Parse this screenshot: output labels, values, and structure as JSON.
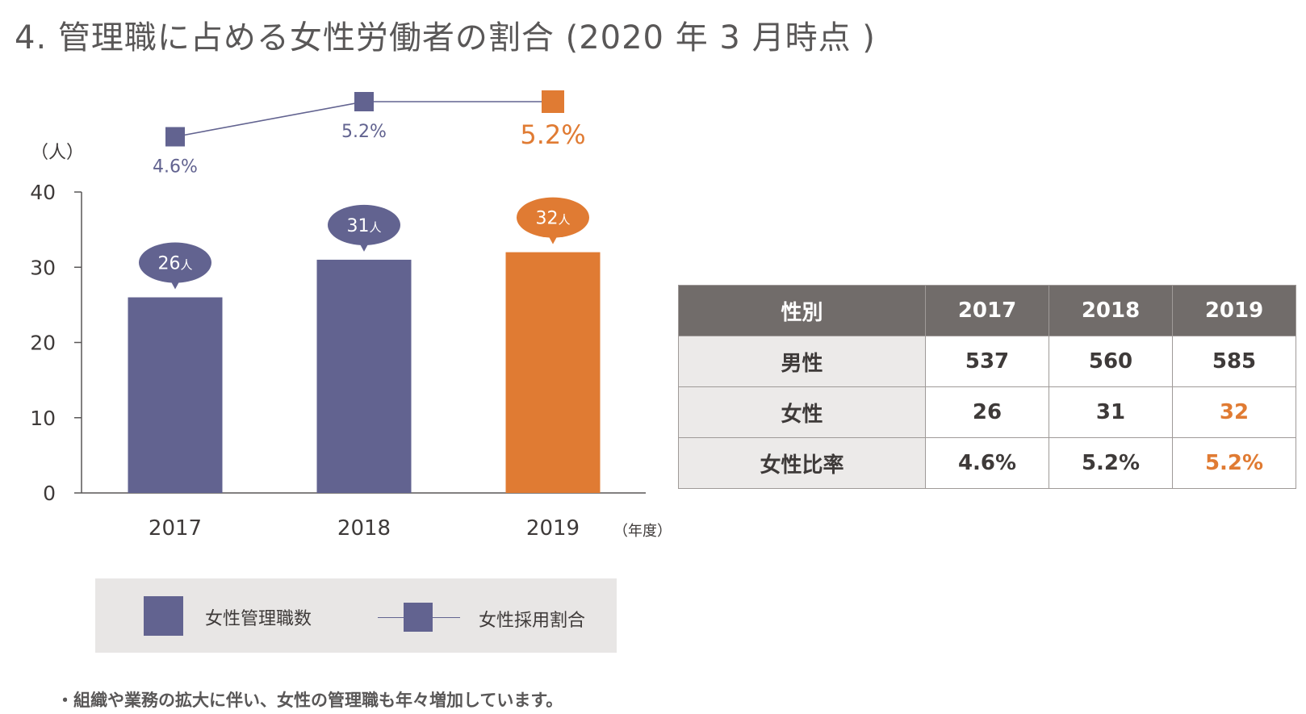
{
  "title": "4. 管理職に占める女性労働者の割合 (2020 年 3 月時点 )",
  "colors": {
    "bar": "#626390",
    "highlight": "#e07b33",
    "axis": "#595757"
  },
  "chart_data": {
    "type": "bar",
    "categories": [
      "2017",
      "2018",
      "2019"
    ],
    "values": [
      26,
      31,
      32
    ],
    "value_labels": [
      "26人",
      "31人",
      "32人"
    ],
    "ylim": [
      0,
      40
    ],
    "yticks": [
      "0",
      "10",
      "20",
      "30",
      "40"
    ],
    "ylabel": "（人）",
    "xlabel": "（年度）",
    "highlight_index": 2,
    "line_series": {
      "name": "女性採用割合",
      "values": [
        4.6,
        5.2,
        5.2
      ],
      "labels": [
        "4.6%",
        "5.2%",
        "5.2%"
      ],
      "ylim": [
        4.0,
        5.2
      ]
    }
  },
  "legend": {
    "bar_label": "女性管理職数",
    "line_label": "女性採用割合"
  },
  "table": {
    "headers": [
      "性別",
      "2017",
      "2018",
      "2019"
    ],
    "rows": [
      [
        "男性",
        "537",
        "560",
        "585"
      ],
      [
        "女性",
        "26",
        "31",
        "32"
      ],
      [
        "女性比率",
        "4.6%",
        "5.2%",
        "5.2%"
      ]
    ]
  },
  "note": "・組織や業務の拡大に伴い、女性の管理職も年々増加しています。"
}
